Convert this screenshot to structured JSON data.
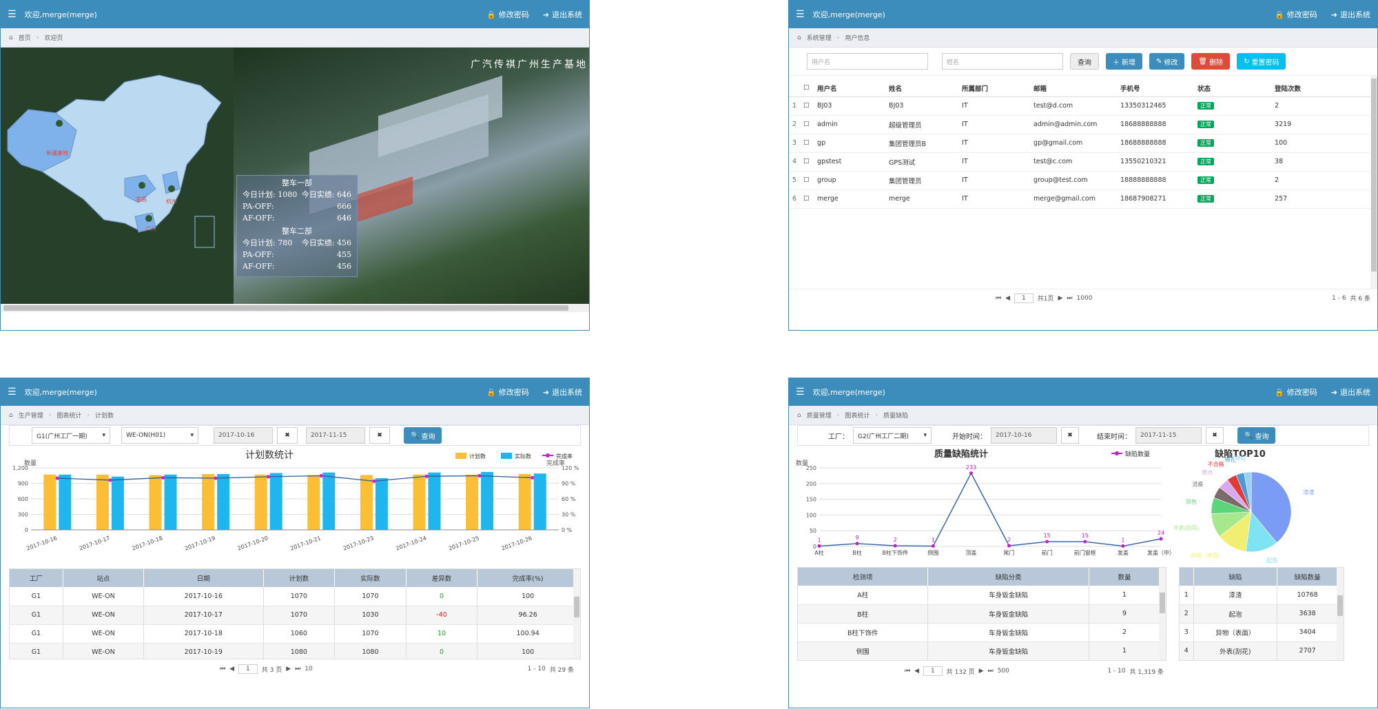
{
  "common": {
    "welcome": "欢迎,merge(merge)",
    "change_pwd": "修改密码",
    "logout": "退出系统"
  },
  "w1": {
    "crumb": [
      "首页",
      "欢迎页"
    ],
    "banner": "广汽传祺广州生产基地",
    "map_labels": [
      "新疆基地",
      "宜昌",
      "杭州",
      "广州"
    ],
    "stats": {
      "d1_title": "整车一部",
      "d1_plan": "今日计划: 1080",
      "d1_actual": "今日实绩: 646",
      "d1_pa_label": "PA-OFF:",
      "d1_pa": "666",
      "d1_af_label": "AF-OFF:",
      "d1_af": "646",
      "d2_title": "整车二部",
      "d2_plan": "今日计划: 780",
      "d2_actual": "今日实绩: 456",
      "d2_pa_label": "PA-OFF:",
      "d2_pa": "455",
      "d2_af_label": "AF-OFF:",
      "d2_af": "456"
    }
  },
  "w2": {
    "crumb": [
      "系统管理",
      "用户信息"
    ],
    "ph_user": "用户名",
    "ph_name": "姓名",
    "btn_query": "查询",
    "btn_add": "新增",
    "btn_edit": "修改",
    "btn_del": "删除",
    "btn_reset": "重置密码",
    "headers": [
      "",
      "用户名",
      "姓名",
      "所属部门",
      "邮箱",
      "手机号",
      "状态",
      "登陆次数"
    ],
    "rows": [
      [
        "1",
        "BJ03",
        "BJ03",
        "IT",
        "test@d.com",
        "13350312465",
        "正常",
        "2"
      ],
      [
        "2",
        "admin",
        "超级管理员",
        "IT",
        "admin@admin.com",
        "18688888888",
        "正常",
        "3219"
      ],
      [
        "3",
        "gp",
        "集团管理员B",
        "IT",
        "gp@gmail.com",
        "18688888888",
        "正常",
        "100"
      ],
      [
        "4",
        "gpstest",
        "GPS测试",
        "IT",
        "test@c.com",
        "13550210321",
        "正常",
        "38"
      ],
      [
        "5",
        "group",
        "集团管理员",
        "IT",
        "group@test.com",
        "18888888888",
        "正常",
        "2"
      ],
      [
        "6",
        "merge",
        "merge",
        "IT",
        "merge@gmail.com",
        "18687908271",
        "正常",
        "257"
      ]
    ],
    "pager": {
      "page": "1",
      "of": "共1页",
      "size": "1000",
      "range": "1 - 6",
      "total": "共 6 条"
    }
  },
  "w3": {
    "crumb": [
      "生产管理",
      "图表统计",
      "计划数"
    ],
    "sel_factory": "G1(广州工厂一期)",
    "sel_station": "WE-ON(H01)",
    "date_from": "2017-10-16",
    "date_to": "2017-11-15",
    "btn_query": "查询",
    "headers": [
      "工厂",
      "站点",
      "日期",
      "计划数",
      "实际数",
      "差异数",
      "完成率(%)"
    ],
    "rows": [
      [
        "G1",
        "WE-ON",
        "2017-10-16",
        "1070",
        "1070",
        "0",
        "100"
      ],
      [
        "G1",
        "WE-ON",
        "2017-10-17",
        "1070",
        "1030",
        "-40",
        "96.26"
      ],
      [
        "G1",
        "WE-ON",
        "2017-10-18",
        "1060",
        "1070",
        "10",
        "100.94"
      ],
      [
        "G1",
        "WE-ON",
        "2017-10-19",
        "1080",
        "1080",
        "0",
        "100"
      ]
    ],
    "pager": {
      "page": "1",
      "of": "共 3 页",
      "size": "10",
      "range": "1 - 10",
      "total": "共 29 条"
    }
  },
  "w4": {
    "crumb": [
      "质量管理",
      "图表统计",
      "质量缺陷"
    ],
    "lbl_factory": "工厂：",
    "sel_factory": "G2(广州工厂二期)",
    "lbl_start": "开始时间：",
    "date_from": "2017-10-16",
    "lbl_end": "结束时间：",
    "date_to": "2017-11-15",
    "btn_query": "查询",
    "headers": [
      "检测项",
      "缺陷分类",
      "数量"
    ],
    "rows": [
      [
        "A柱",
        "车身钣金缺陷",
        "1"
      ],
      [
        "B柱",
        "车身钣金缺陷",
        "9"
      ],
      [
        "B柱下饰件",
        "车身钣金缺陷",
        "2"
      ],
      [
        "侧围",
        "车身钣金缺陷",
        "1"
      ]
    ],
    "top_headers": [
      "",
      "缺陷",
      "缺陷数量"
    ],
    "top_rows": [
      [
        "1",
        "漆渣",
        "10768"
      ],
      [
        "2",
        "起泡",
        "3638"
      ],
      [
        "3",
        "异物（表面）",
        "3404"
      ],
      [
        "4",
        "外表(刮花)",
        "2707"
      ]
    ],
    "pager": {
      "page": "1",
      "of": "共 132 页",
      "size": "500",
      "range": "1 - 10",
      "total": "共 1,319 条"
    }
  },
  "chart_data": [
    {
      "type": "bar",
      "title": "计划数统计",
      "ylabel": "数量",
      "y2label": "完成率",
      "ylim": [
        0,
        1200
      ],
      "y2lim": [
        0,
        120
      ],
      "categories": [
        "2017-10-16",
        "2017-10-17",
        "2017-10-18",
        "2017-10-19",
        "2017-10-20",
        "2017-10-21",
        "2017-10-23",
        "2017-10-24",
        "2017-10-25",
        "2017-10-26"
      ],
      "series": [
        {
          "name": "计划数",
          "color": "#fbbe35",
          "values": [
            1070,
            1070,
            1060,
            1080,
            1070,
            1060,
            1060,
            1070,
            1070,
            1080
          ]
        },
        {
          "name": "实际数",
          "color": "#1fb5ee",
          "values": [
            1070,
            1030,
            1070,
            1080,
            1100,
            1110,
            1000,
            1110,
            1120,
            1090
          ]
        },
        {
          "name": "完成率",
          "color": "#d020d0",
          "line_color": "#2c5a96",
          "values": [
            100,
            96.26,
            100.94,
            100,
            102.8,
            104.7,
            94.3,
            103.7,
            104.7,
            100.9
          ]
        }
      ],
      "ytick_labels": [
        "0",
        "300",
        "600",
        "900",
        "1,200"
      ],
      "y2tick_labels": [
        "0 %",
        "30 %",
        "60 %",
        "90 %",
        "120 %"
      ]
    },
    {
      "type": "line",
      "title": "质量缺陷统计",
      "ylabel": "数量",
      "ylim": [
        0,
        250
      ],
      "legend": "缺陷数量",
      "categories": [
        "A柱",
        "B柱",
        "B柱下饰件",
        "侧围",
        "顶盖",
        "尾门",
        "前门",
        "前门窗框",
        "发盖",
        "发盖（中）"
      ],
      "values": [
        1,
        9,
        2,
        1,
        233,
        2,
        15,
        15,
        1,
        24
      ],
      "ytick_labels": [
        "0",
        "50",
        "100",
        "150",
        "200",
        "250"
      ]
    },
    {
      "type": "pie",
      "title": "缺陷TOP10",
      "labels": [
        "漆渣",
        "起泡",
        "异物（表面）",
        "外表(刮花)",
        "异色",
        "流痕",
        "黑点",
        "不合格",
        "棉孔",
        "颗粒"
      ],
      "values": [
        10768,
        3638,
        3404,
        2707,
        1800,
        1300,
        1200,
        1100,
        900,
        800
      ],
      "colors": [
        "#7b9cf4",
        "#7ee3f2",
        "#f2ee72",
        "#a8e88c",
        "#5cd47a",
        "#7a6a6a",
        "#d8a8f0",
        "#e03a3a",
        "#4a9ad8",
        "#9ad0f0"
      ]
    }
  ]
}
